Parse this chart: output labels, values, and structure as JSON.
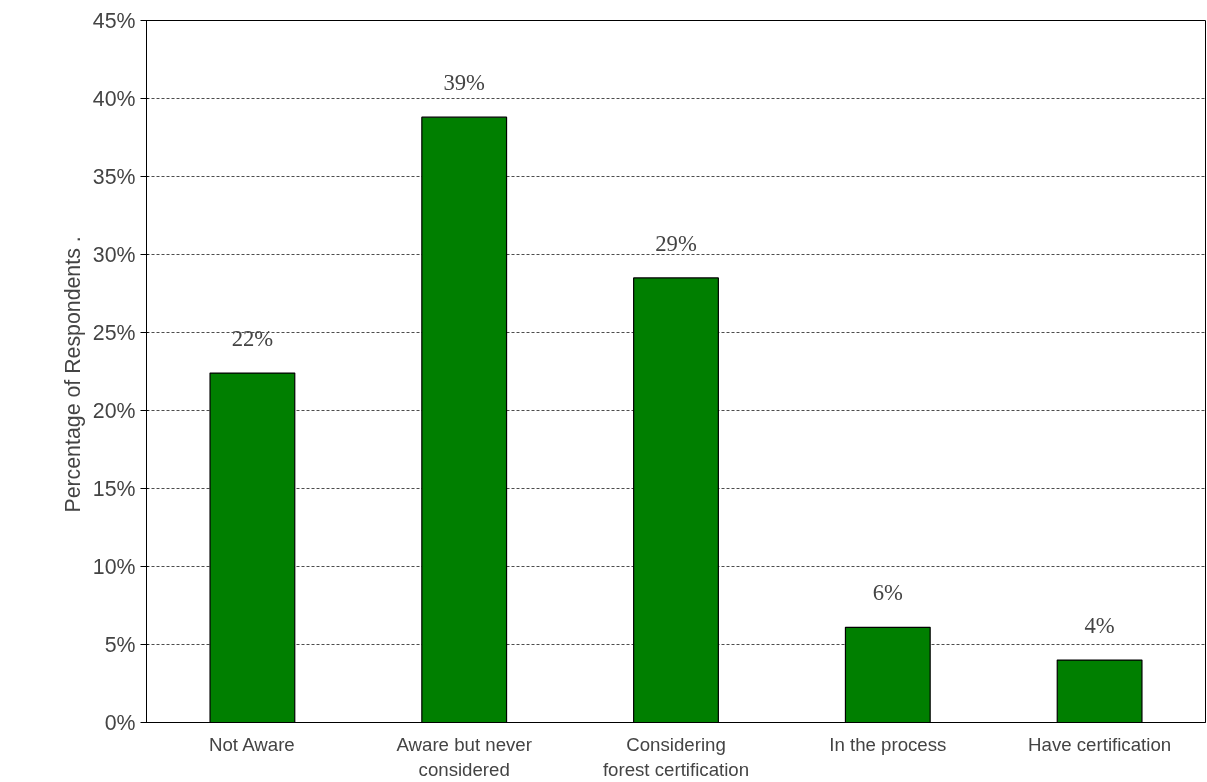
{
  "chart_data": {
    "type": "bar",
    "ylabel": "Percentage of Respondents  .",
    "categories": [
      "Not Aware",
      "Aware but never\nconsidered",
      "Considering\nforest certification",
      "In the process",
      "Have certification"
    ],
    "values": [
      22.4,
      38.8,
      28.5,
      6.1,
      4.0
    ],
    "value_labels": [
      "22%",
      "39%",
      "29%",
      "6%",
      "4%"
    ],
    "color": "#007f00",
    "ylim": [
      0,
      45
    ],
    "yticks": [
      {
        "value": 0,
        "label": "0%"
      },
      {
        "value": 5,
        "label": "5%"
      },
      {
        "value": 10,
        "label": "10%"
      },
      {
        "value": 15,
        "label": "15%"
      },
      {
        "value": 20,
        "label": "20%"
      },
      {
        "value": 25,
        "label": "25%"
      },
      {
        "value": 30,
        "label": "30%"
      },
      {
        "value": 35,
        "label": "35%"
      },
      {
        "value": 40,
        "label": "40%"
      },
      {
        "value": 45,
        "label": "45%"
      }
    ],
    "grid": "y"
  }
}
